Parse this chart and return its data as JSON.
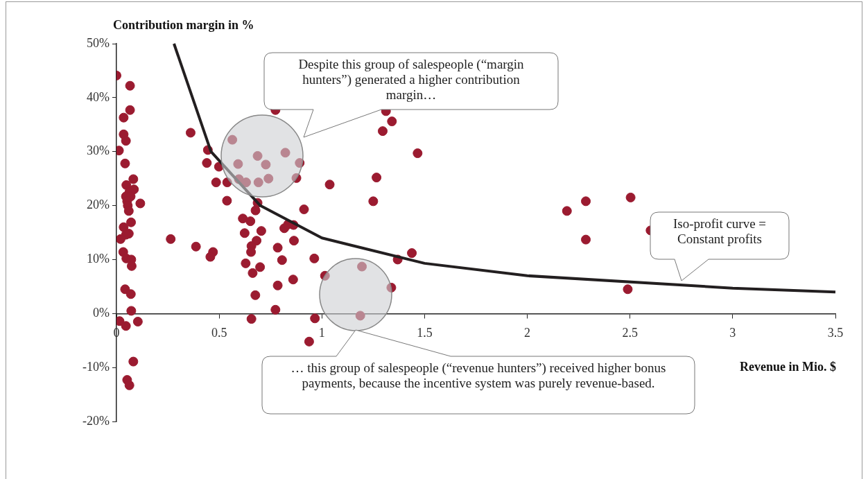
{
  "chart_data": {
    "type": "scatter",
    "xlabel": "Revenue in Mio. $",
    "ylabel": "Contribution margin in %",
    "xlim": [
      0,
      3.5
    ],
    "ylim": [
      -20,
      50
    ],
    "xticks": [
      0,
      0.5,
      1,
      1.5,
      2,
      2.5,
      3,
      3.5
    ],
    "yticks": [
      {
        "value": -20,
        "label": "-20%"
      },
      {
        "value": -10,
        "label": "-10%"
      },
      {
        "value": 0,
        "label": "0%"
      },
      {
        "value": 10,
        "label": "10%"
      },
      {
        "value": 20,
        "label": "20%"
      },
      {
        "value": 30,
        "label": "30%"
      },
      {
        "value": 40,
        "label": "40%"
      },
      {
        "value": 50,
        "label": "50%"
      }
    ],
    "grid": false,
    "marker": "circle",
    "annotations": [
      "Despite this group of salespeople (“margin hunters”) generated a higher contribution margin…",
      "Iso-profit curve = Constant profits",
      "… this group of salespeople (“revenue hunters”) received higher bonus payments, because the incentive system was purely revenue-based."
    ],
    "series": [
      {
        "color": "#9b1b30",
        "x": [
          0.0,
          0.066,
          0.066,
          0.035,
          0.035,
          0.046,
          0.012,
          0.042,
          0.082,
          0.048,
          0.085,
          0.063,
          0.046,
          0.069,
          0.052,
          0.116,
          0.055,
          0.06,
          0.071,
          0.035,
          0.06,
          0.046,
          0.02,
          0.264,
          0.033,
          0.048,
          0.072,
          0.074,
          0.042,
          0.07,
          0.072,
          0.015,
          0.046,
          0.104,
          0.082,
          0.052,
          0.063,
          0.361,
          0.445,
          0.44,
          0.499,
          0.564,
          0.485,
          0.539,
          0.538,
          0.592,
          0.687,
          0.727,
          0.822,
          0.892,
          0.596,
          0.631,
          0.691,
          0.74,
          0.876,
          1.038,
          0.774,
          0.687,
          0.677,
          0.913,
          0.615,
          0.652,
          0.817,
          0.862,
          0.835,
          0.624,
          0.705,
          0.682,
          0.864,
          0.387,
          0.47,
          0.457,
          0.657,
          0.655,
          0.785,
          0.806,
          0.629,
          0.699,
          0.663,
          0.963,
          1.015,
          0.86,
          0.785,
          0.676,
          0.774,
          0.657,
          0.966,
          0.938,
          1.312,
          1.341,
          1.296,
          1.466,
          1.266,
          1.25,
          1.438,
          1.369,
          1.195,
          1.338,
          1.187,
          2.193,
          2.285,
          2.503,
          2.285,
          2.489,
          2.6
        ],
        "values": [
          44.1,
          42.2,
          37.7,
          36.3,
          33.2,
          32.0,
          30.2,
          27.8,
          24.9,
          23.8,
          23.0,
          22.5,
          21.7,
          21.7,
          20.8,
          20.4,
          20.0,
          19.0,
          16.9,
          16.0,
          14.8,
          14.6,
          13.8,
          13.8,
          11.4,
          10.2,
          10.0,
          8.8,
          4.5,
          3.6,
          0.5,
          -1.4,
          -2.3,
          -1.5,
          -8.9,
          -12.3,
          -13.3,
          33.5,
          30.3,
          27.9,
          27.2,
          32.2,
          24.3,
          24.3,
          20.9,
          27.7,
          29.2,
          27.6,
          29.8,
          27.9,
          24.9,
          24.3,
          24.3,
          25.0,
          25.1,
          23.9,
          37.7,
          20.5,
          19.1,
          19.3,
          17.6,
          17.1,
          15.8,
          16.4,
          16.5,
          14.9,
          15.3,
          13.5,
          13.5,
          12.4,
          11.4,
          10.5,
          12.5,
          11.4,
          12.2,
          9.9,
          9.3,
          8.6,
          7.5,
          10.2,
          7.0,
          6.3,
          5.2,
          3.4,
          0.7,
          -1.0,
          -0.9,
          -5.2,
          37.5,
          35.6,
          33.8,
          29.7,
          25.2,
          20.8,
          11.2,
          10.0,
          8.7,
          4.8,
          -0.4,
          19.0,
          20.8,
          21.5,
          13.7,
          4.5,
          15.4
        ]
      },
      {
        "type": "line",
        "color": "#231f20",
        "marker": "none",
        "x": [
          0.28,
          0.46,
          0.7,
          1,
          1.5,
          2,
          3,
          3.5
        ],
        "values": [
          50,
          30,
          20,
          14,
          9.3,
          7,
          4.7,
          4
        ]
      }
    ]
  }
}
